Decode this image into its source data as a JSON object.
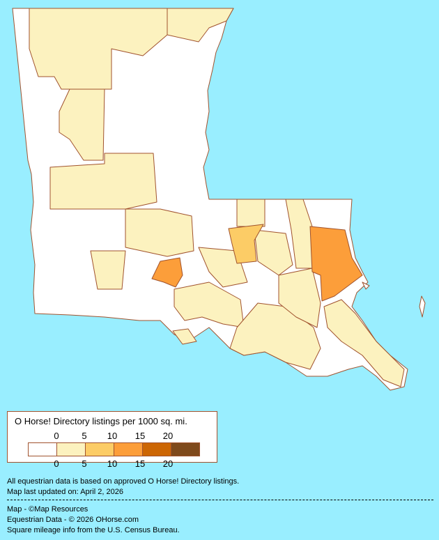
{
  "legend": {
    "title": "O Horse! Directory listings per 1000 sq. mi.",
    "ticks": [
      "0",
      "5",
      "10",
      "15",
      "20"
    ],
    "bins": [
      {
        "range": "0",
        "color": "#FFFFFF"
      },
      {
        "range": "0-5",
        "color": "#FCF2BF"
      },
      {
        "range": "5-10",
        "color": "#FCCC66"
      },
      {
        "range": "10-15",
        "color": "#FC9E3A"
      },
      {
        "range": "15-20",
        "color": "#CC6604"
      },
      {
        "range": "20+",
        "color": "#7F4A1C"
      }
    ]
  },
  "colors": {
    "background": "#99EEFF",
    "border": "#A0522D"
  },
  "footer": {
    "line1": "All equestrian data is based on approved O Horse! Directory listings.",
    "line2": "Map last updated on: April 2, 2026",
    "credit_map": "Map - ©Map Resources",
    "credit_data": "Equestrian Data - © 2026 OHorse.com",
    "credit_census": "Square mileage info from the U.S. Census Bureau."
  }
}
